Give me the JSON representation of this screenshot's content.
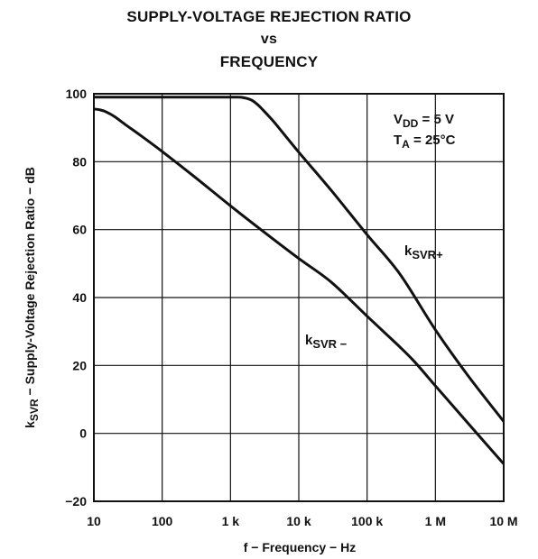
{
  "chart_data": {
    "type": "line",
    "title_line1": "SUPPLY-VOLTAGE REJECTION RATIO",
    "title_line2": "vs",
    "title_line3": "FREQUENCY",
    "xlabel": "f − Frequency − Hz",
    "ylabel_main": "k",
    "ylabel_sub": "SVR",
    "ylabel_rest": " − Supply-Voltage Rejection Ratio − dB",
    "x_scale": "log",
    "xlim": [
      10,
      10000000
    ],
    "ylim": [
      -20,
      100
    ],
    "grid": true,
    "x_ticks": [
      {
        "value": 10,
        "label": "10"
      },
      {
        "value": 100,
        "label": "100"
      },
      {
        "value": 1000,
        "label": "1 k"
      },
      {
        "value": 10000,
        "label": "10 k"
      },
      {
        "value": 100000,
        "label": "100 k"
      },
      {
        "value": 1000000,
        "label": "1 M"
      },
      {
        "value": 10000000,
        "label": "10 M"
      }
    ],
    "y_ticks": [
      {
        "value": 100,
        "label": "100"
      },
      {
        "value": 80,
        "label": "80"
      },
      {
        "value": 60,
        "label": "60"
      },
      {
        "value": 40,
        "label": "40"
      },
      {
        "value": 20,
        "label": "20"
      },
      {
        "value": 0,
        "label": "0"
      },
      {
        "value": -20,
        "label": "−20"
      }
    ],
    "conditions": [
      {
        "main": "V",
        "sub": "DD",
        "rest": " = 5 V"
      },
      {
        "main": "T",
        "sub": "A",
        "rest": " = 25°C"
      }
    ],
    "series": [
      {
        "name_main": "k",
        "name_sub": "SVR+",
        "color": "#111111",
        "points": [
          [
            10,
            99
          ],
          [
            100,
            99
          ],
          [
            1000,
            99
          ],
          [
            1500,
            98.9
          ],
          [
            2000,
            98.2
          ],
          [
            2500,
            96.8
          ],
          [
            3000,
            95.2
          ],
          [
            4000,
            92.5
          ],
          [
            5000,
            90.2
          ],
          [
            10000,
            82.8
          ],
          [
            30000,
            71.5
          ],
          [
            100000,
            58.5
          ],
          [
            300000,
            47.0
          ],
          [
            1000000,
            30.5
          ],
          [
            3000000,
            17.0
          ],
          [
            10000000,
            3.5
          ]
        ]
      },
      {
        "name_main": "k",
        "name_sub": "SVR −",
        "color": "#111111",
        "points": [
          [
            10,
            95.5
          ],
          [
            12,
            95.3
          ],
          [
            15,
            94.7
          ],
          [
            20,
            93.3
          ],
          [
            30,
            90.7
          ],
          [
            50,
            87.5
          ],
          [
            100,
            83.0
          ],
          [
            300,
            75.5
          ],
          [
            1000,
            67.0
          ],
          [
            3000,
            59.5
          ],
          [
            10000,
            51.5
          ],
          [
            30000,
            44.5
          ],
          [
            100000,
            34.5
          ],
          [
            300000,
            25.5
          ],
          [
            500000,
            21.0
          ],
          [
            1000000,
            14.0
          ],
          [
            3000000,
            3.0
          ],
          [
            10000000,
            -9.0
          ]
        ]
      }
    ]
  }
}
